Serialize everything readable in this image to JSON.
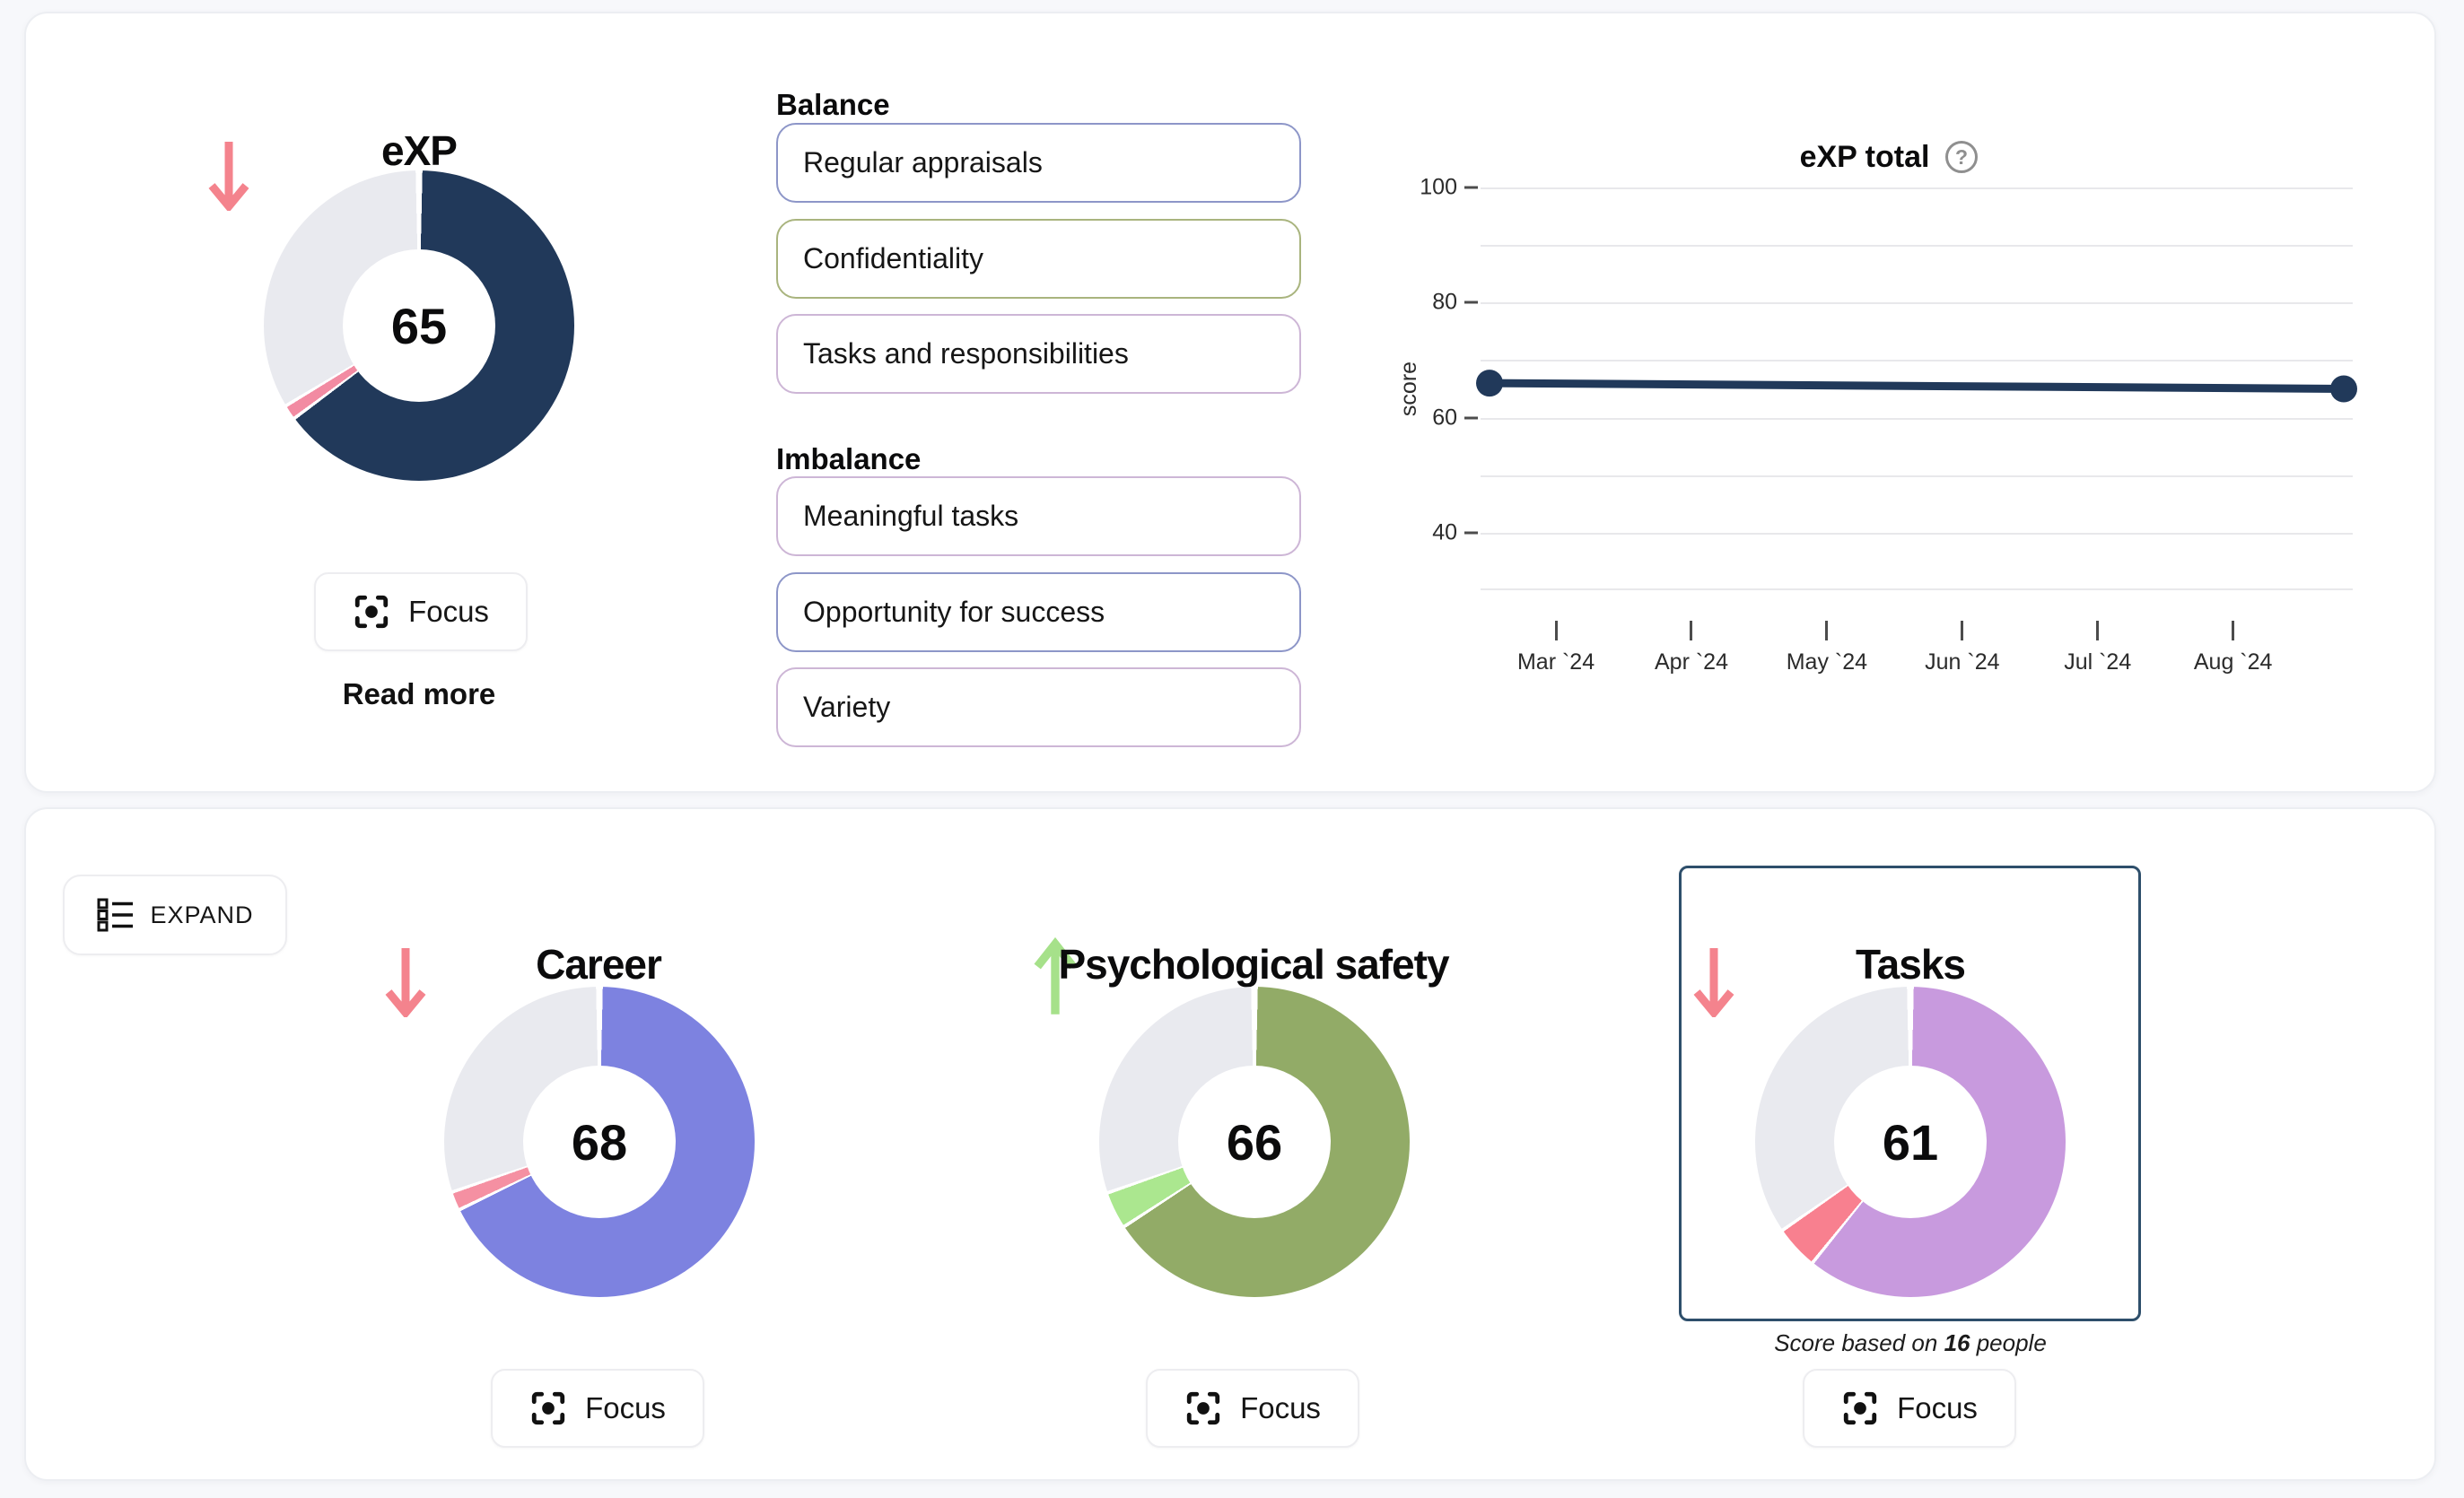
{
  "colors": {
    "down": "#f4838d",
    "up": "#a6e18a",
    "navy": "#21395a",
    "career": "#7d82e0",
    "psych": "#92ab67",
    "tasks": "#c89ade",
    "track": "#e9eaef"
  },
  "labels": {
    "focus": "Focus",
    "expand": "EXPAND"
  },
  "exp": {
    "title": "eXP",
    "read_more": "Read more",
    "donut": {
      "value": 65,
      "main": "#21395a",
      "sliver": "#f28ba2",
      "sliver_pct": 1.2,
      "rest": "#e9eaef"
    },
    "balance": {
      "header": "Balance",
      "items": [
        {
          "label": "Regular appraisals",
          "border": "#8d96c8"
        },
        {
          "label": "Confidentiality",
          "border": "#a9b47e"
        },
        {
          "label": "Tasks and responsibilities",
          "border": "#cdb6d6"
        }
      ]
    },
    "imbalance": {
      "header": "Imbalance",
      "items": [
        {
          "label": "Meaningful tasks",
          "border": "#cdb6d6"
        },
        {
          "label": "Opportunity for success",
          "border": "#8d96c8"
        },
        {
          "label": "Variety",
          "border": "#cdb6d6"
        }
      ]
    }
  },
  "chart_data": {
    "type": "line",
    "title": "eXP total",
    "ylabel": "score",
    "x_ticks": [
      "Mar `24",
      "Apr `24",
      "May `24",
      "Jun `24",
      "Jul `24",
      "Aug `24"
    ],
    "y_ticks": [
      100,
      80,
      60,
      40
    ],
    "gridlines": [
      100,
      90,
      80,
      70,
      60,
      50,
      40,
      30
    ],
    "ylim": [
      30,
      100
    ],
    "legend": "none",
    "series": [
      {
        "name": "eXP total",
        "color": "#21395a",
        "values": [
          66,
          65
        ]
      }
    ]
  },
  "categories": {
    "groups": [
      {
        "title": "Career",
        "trend": "down",
        "donut": {
          "value": 68,
          "main": "#7d82e0",
          "sliver": "#f590a2",
          "sliver_pct": 1.6,
          "rest": "#e9eaef"
        }
      },
      {
        "title": "Psychological safety",
        "trend": "up",
        "donut": {
          "value": 66,
          "main": "#92ab67",
          "sliver": "#abe78f",
          "sliver_pct": 3.5,
          "rest": "#e9eaef"
        }
      },
      {
        "title": "Tasks",
        "trend": "down",
        "selected": true,
        "donut": {
          "value": 61,
          "main": "#c89ade",
          "sliver": "#f8808f",
          "sliver_pct": 4.2,
          "rest": "#e9eaef"
        },
        "note": {
          "prefix": "Score based on ",
          "count": "16",
          "suffix": " people"
        }
      }
    ]
  }
}
